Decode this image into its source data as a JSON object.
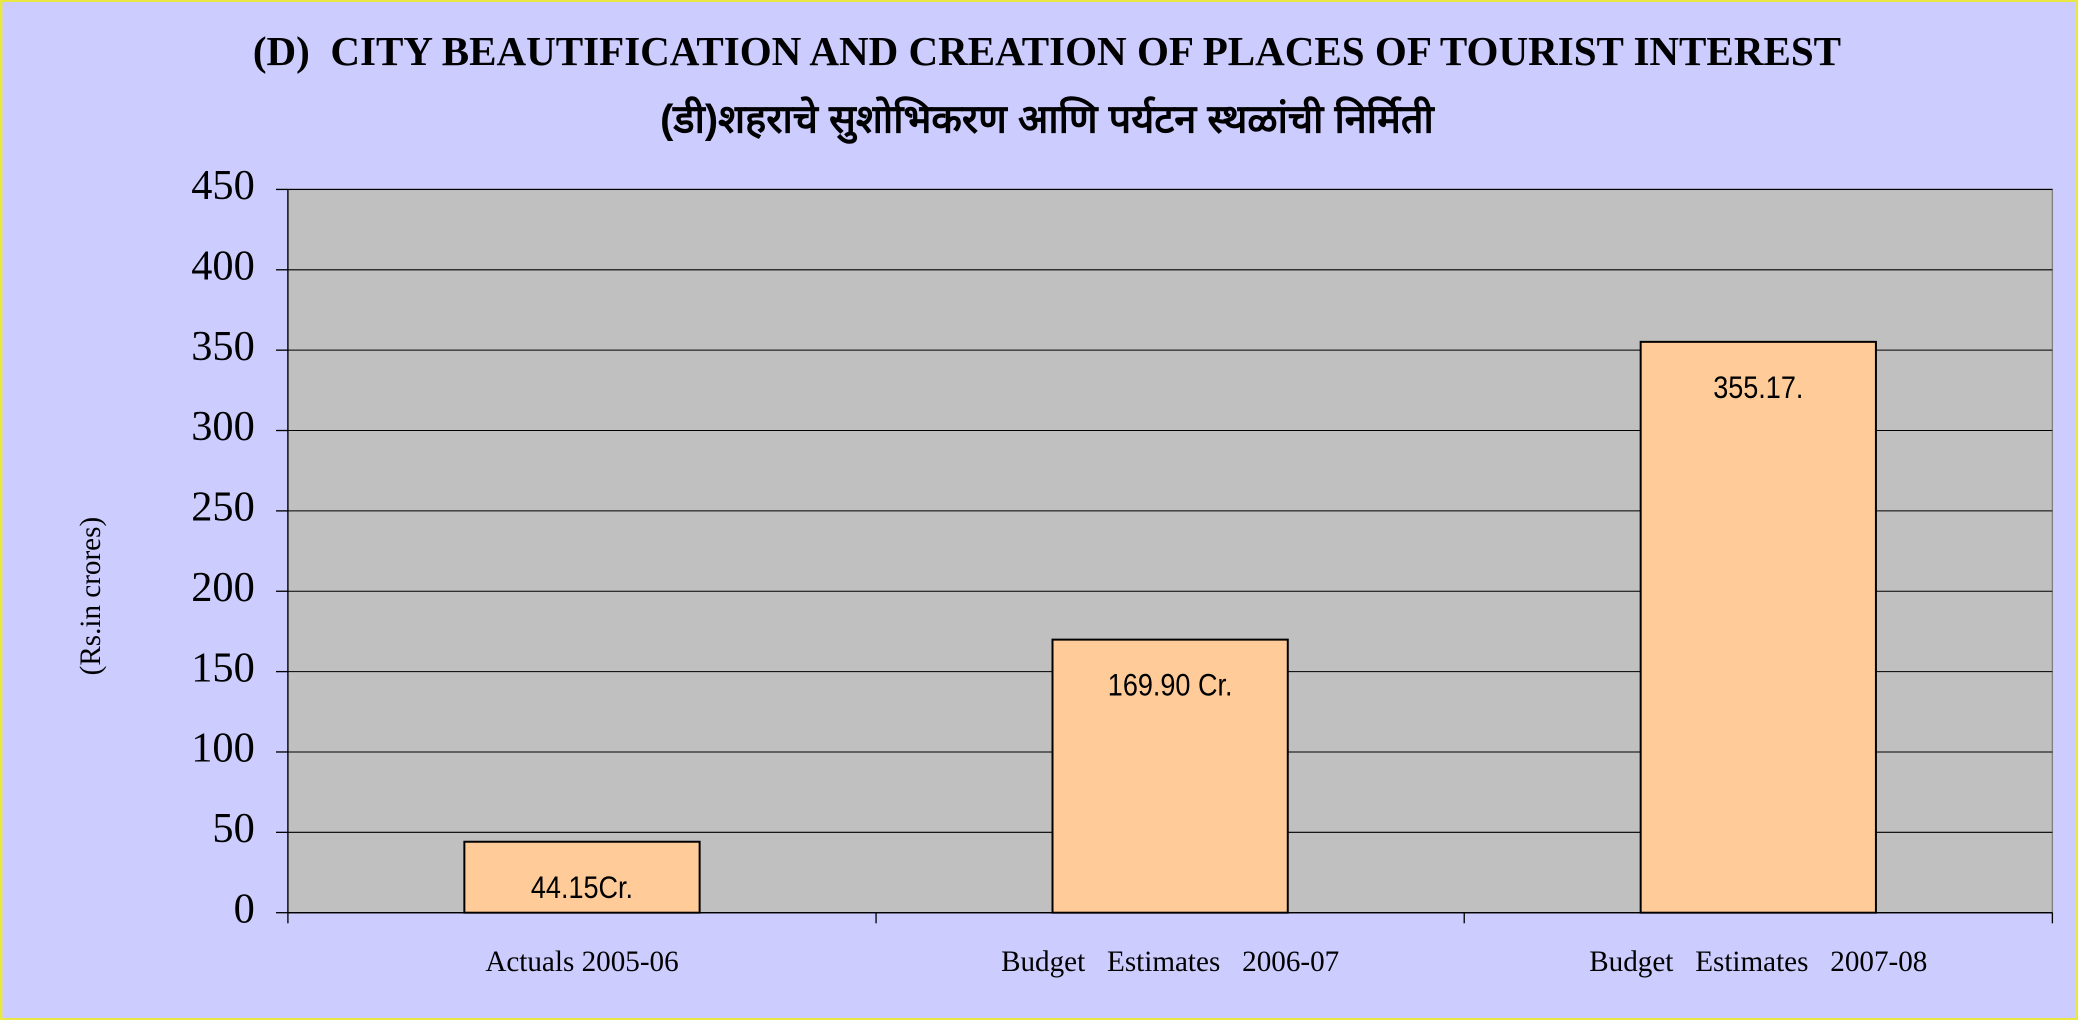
{
  "chart_data": {
    "type": "bar",
    "title": "(D)  CITY BEAUTIFICATION AND CREATION OF PLACES OF TOURIST INTEREST",
    "subtitle": "(डी)शहराचे सुशोभिकरण आणि पर्यटन स्थळांची निर्मिती",
    "y_label": "(Rs.in crores)",
    "categories": [
      "Actuals 2005-06",
      "Budget   Estimates   2006-07",
      "Budget   Estimates   2007-08"
    ],
    "values": [
      44.15,
      169.9,
      355.17
    ],
    "value_labels": [
      "44.15Cr.",
      "169.90 Cr.",
      "355.17."
    ],
    "color": "#ffcc99",
    "ylim": [
      0,
      450
    ],
    "yticks": [
      0,
      50,
      100,
      150,
      200,
      250,
      300,
      350,
      400,
      450
    ],
    "grid": true
  }
}
